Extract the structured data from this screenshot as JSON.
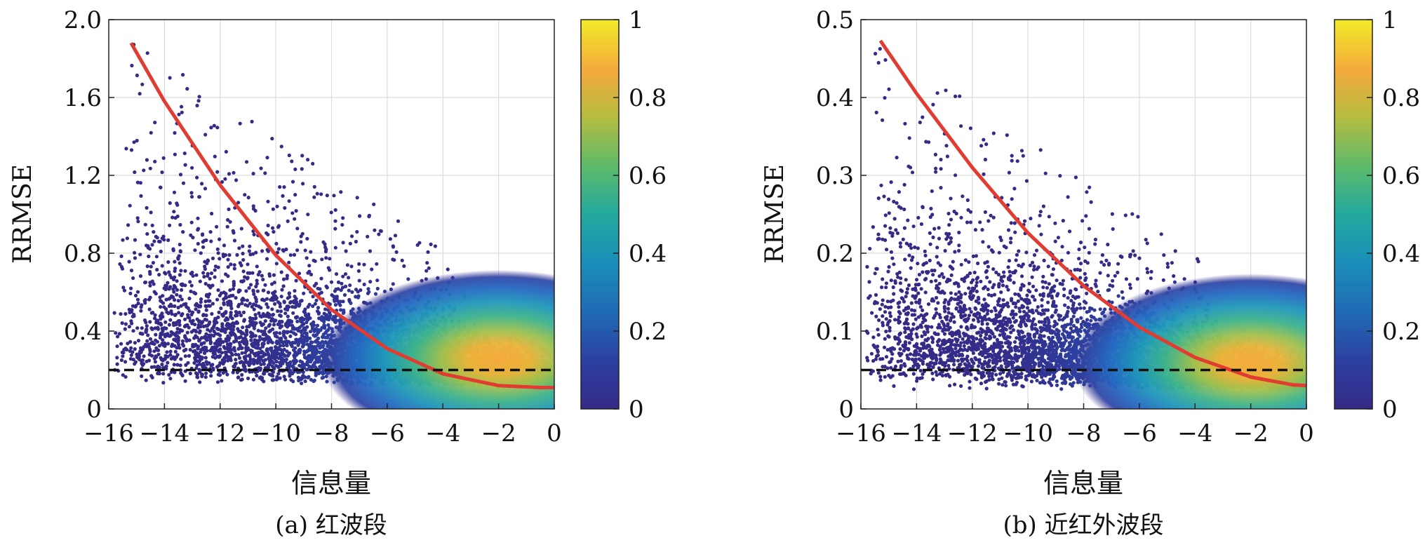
{
  "chart_data": [
    {
      "type": "scatter",
      "title": "",
      "caption": "(a) 红波段",
      "xlabel": "信息量",
      "ylabel": "RRMSE",
      "xlim": [
        -16,
        0
      ],
      "ylim": [
        0,
        2.0
      ],
      "x_ticks": [
        "−16",
        "−14",
        "−12",
        "−10",
        "−8",
        "−6",
        "−4",
        "−2",
        "0"
      ],
      "y_ticks": [
        "0",
        "0.4",
        "0.8",
        "1.2",
        "1.6",
        "2.0"
      ],
      "grid": true,
      "colorbar": {
        "range": [
          0,
          1
        ],
        "ticks": [
          "0",
          "0.2",
          "0.4",
          "0.6",
          "0.8",
          "1"
        ]
      },
      "density_peak": {
        "x": -2.0,
        "y": 0.28
      },
      "point_cloud_bounds": {
        "x": [
          -15.8,
          0
        ],
        "y_floor": 0.12
      },
      "fit_curve": {
        "color": "#e03c31",
        "x": [
          -15.2,
          -14,
          -12,
          -10,
          -8,
          -6,
          -4,
          -2,
          -0.5,
          0
        ],
        "y": [
          1.88,
          1.58,
          1.15,
          0.79,
          0.51,
          0.31,
          0.18,
          0.12,
          0.11,
          0.11
        ]
      },
      "reference_line": {
        "style": "dashed",
        "y": 0.2
      }
    },
    {
      "type": "scatter",
      "title": "",
      "caption": "(b) 近红外波段",
      "xlabel": "信息量",
      "ylabel": "RRMSE",
      "xlim": [
        -16,
        0
      ],
      "ylim": [
        0,
        0.5
      ],
      "x_ticks": [
        "−16",
        "−14",
        "−12",
        "−10",
        "−8",
        "−6",
        "−4",
        "−2",
        "0"
      ],
      "y_ticks": [
        "0",
        "0.1",
        "0.2",
        "0.3",
        "0.4",
        "0.5"
      ],
      "grid": true,
      "colorbar": {
        "range": [
          0,
          1
        ],
        "ticks": [
          "0",
          "0.2",
          "0.4",
          "0.6",
          "0.8",
          "1"
        ]
      },
      "density_peak": {
        "x": -2.0,
        "y": 0.065
      },
      "point_cloud_bounds": {
        "x": [
          -15.8,
          0
        ],
        "y_floor": 0.025
      },
      "fit_curve": {
        "color": "#e03c31",
        "x": [
          -15.3,
          -14,
          -12,
          -10,
          -8,
          -6,
          -4,
          -2,
          -0.5,
          0
        ],
        "y": [
          0.473,
          0.405,
          0.31,
          0.226,
          0.158,
          0.105,
          0.066,
          0.041,
          0.031,
          0.03
        ]
      },
      "reference_line": {
        "style": "dashed",
        "y": 0.05
      }
    }
  ]
}
